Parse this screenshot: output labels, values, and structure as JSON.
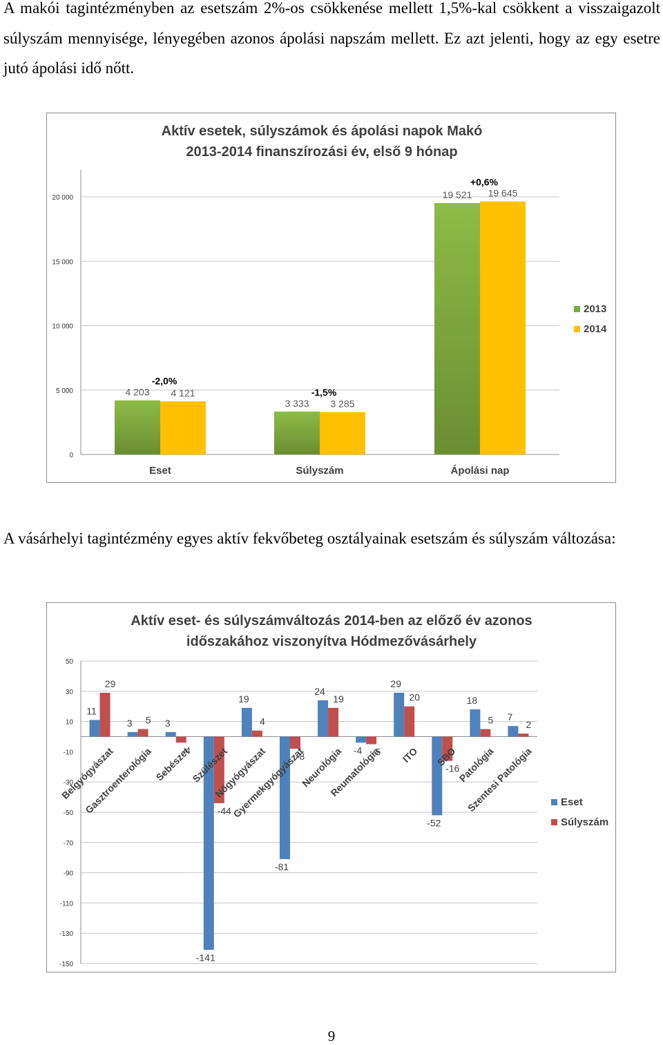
{
  "paragraph1": "A makói tagintézményben az esetszám 2%-os csökkenése mellett 1,5%-kal csökkent a visszaigazolt súlyszám mennyisége, lényegében azonos ápolási napszám mellett. Ez azt jelenti, hogy az egy esetre jutó ápolási idő nőtt.",
  "paragraph2": "A vásárhelyi tagintézmény egyes aktív fekvőbeteg osztályainak esetszám és súlyszám változása:",
  "page_number": "9",
  "colors": {
    "green": "#7ea93d",
    "yellow": "#ffc000",
    "blue": "#4f81bd",
    "red": "#c0504d",
    "grid": "#c6c6c6",
    "title": "#404040"
  },
  "chart_data": [
    {
      "type": "bar",
      "title_line1": "Aktív esetek, súlyszámok és ápolási napok Makó",
      "title_line2": "2013-2014 finanszírozási év, első 9 hónap",
      "categories": [
        "Eset",
        "Súlyszám",
        "Ápolási nap"
      ],
      "series": [
        {
          "name": "2013",
          "values": [
            4203,
            3333,
            19521
          ],
          "labels": [
            "4 203",
            "3 333",
            "19 521"
          ]
        },
        {
          "name": "2014",
          "values": [
            4121,
            3285,
            19645
          ],
          "labels": [
            "4 121",
            "3 285",
            "19 645"
          ]
        }
      ],
      "change_labels": [
        "-2,0%",
        "-1,5%",
        "+0,6%"
      ],
      "ylim": [
        0,
        20000
      ],
      "yticks": [
        0,
        5000,
        10000,
        15000,
        20000
      ],
      "ytick_labels": [
        "0",
        "5 000",
        "10 000",
        "15 000",
        "20 000"
      ],
      "grid": true,
      "legend": "right"
    },
    {
      "type": "bar",
      "title_line1": "Aktív eset- és súlyszámváltozás 2014-ben az előző év azonos",
      "title_line2": "időszakához viszonyítva Hódmezővásárhely",
      "categories": [
        "Belgyógyászat",
        "Gasztroenterológia",
        "Sebészet",
        "Szülészet",
        "Nőgyógyászat",
        "Gyermekgyógyászat",
        "Neurológia",
        "Reumatológia",
        "ITO",
        "SBO",
        "Patológia",
        "Szentesi Patológia"
      ],
      "series": [
        {
          "name": "Eset",
          "values": [
            11,
            3,
            3,
            -141,
            19,
            -81,
            24,
            -4,
            29,
            -52,
            18,
            7
          ]
        },
        {
          "name": "Súlyszám",
          "values": [
            29,
            5,
            -4,
            -44,
            4,
            -8,
            19,
            -5,
            20,
            -16,
            5,
            2
          ]
        }
      ],
      "ylim": [
        -150,
        50
      ],
      "yticks": [
        50,
        30,
        10,
        -10,
        -30,
        -50,
        -70,
        -90,
        -110,
        -130,
        -150
      ],
      "grid": true,
      "legend": "right"
    }
  ]
}
